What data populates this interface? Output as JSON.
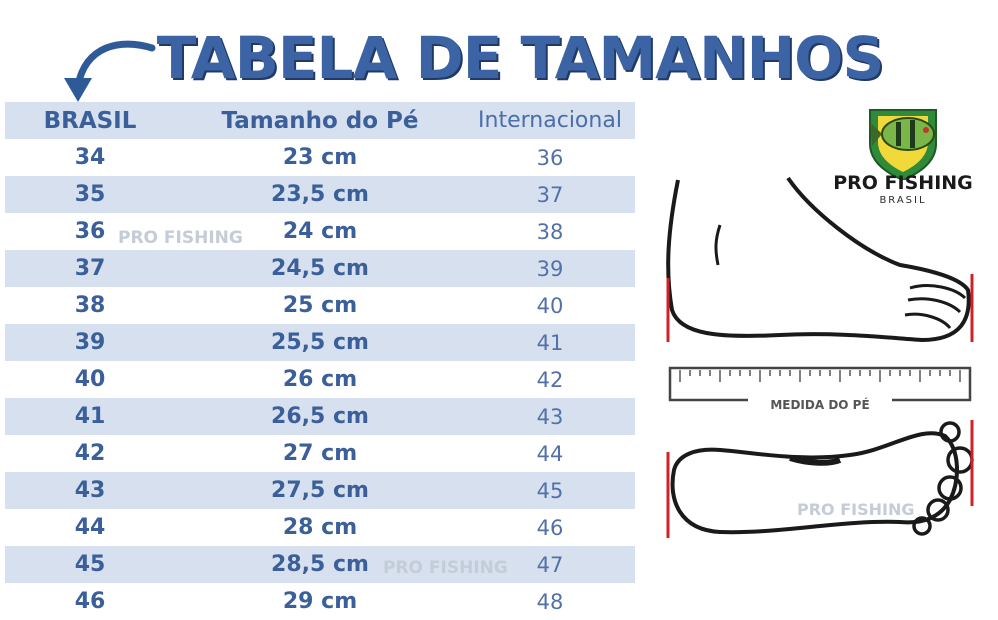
{
  "title": "TABELA DE TAMANHOS",
  "headers": {
    "brasil": "BRASIL",
    "tamanho": "Tamanho do Pé",
    "internacional": "Internacional"
  },
  "rows": [
    {
      "brasil": "34",
      "tamanho": "23 cm",
      "internacional": "36"
    },
    {
      "brasil": "35",
      "tamanho": "23,5 cm",
      "internacional": "37"
    },
    {
      "brasil": "36",
      "tamanho": "24 cm",
      "internacional": "38"
    },
    {
      "brasil": "37",
      "tamanho": "24,5 cm",
      "internacional": "39"
    },
    {
      "brasil": "38",
      "tamanho": "25 cm",
      "internacional": "40"
    },
    {
      "brasil": "39",
      "tamanho": "25,5 cm",
      "internacional": "41"
    },
    {
      "brasil": "40",
      "tamanho": "26 cm",
      "internacional": "42"
    },
    {
      "brasil": "41",
      "tamanho": "26,5 cm",
      "internacional": "43"
    },
    {
      "brasil": "42",
      "tamanho": "27 cm",
      "internacional": "44"
    },
    {
      "brasil": "43",
      "tamanho": "27,5 cm",
      "internacional": "45"
    },
    {
      "brasil": "44",
      "tamanho": "28 cm",
      "internacional": "46"
    },
    {
      "brasil": "45",
      "tamanho": "28,5 cm",
      "internacional": "47"
    },
    {
      "brasil": "46",
      "tamanho": "29 cm",
      "internacional": "48"
    }
  ],
  "logo": {
    "name": "PRO FISHING",
    "sub": "BRASIL"
  },
  "measure_label": "MEDIDA DO PÉ",
  "colors": {
    "title": "#3c64a4",
    "row_shade": "#d7e0ef",
    "text": "#3a5f99",
    "accent_red": "#d0202a"
  }
}
